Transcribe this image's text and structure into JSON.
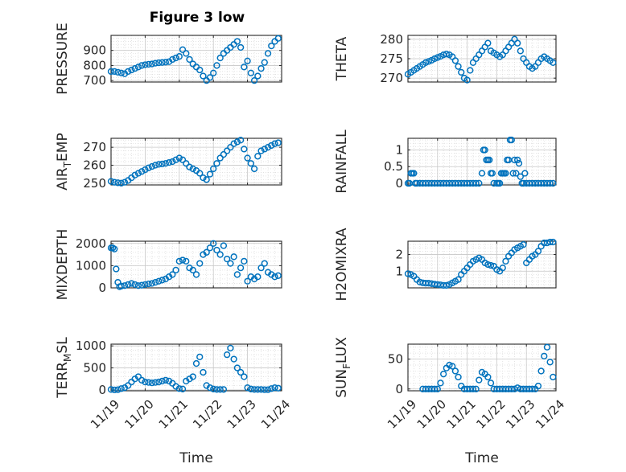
{
  "figure_title": "Figure 3 low",
  "colors": {
    "marker": "#0072BD",
    "axis": "#262626",
    "grid": "#d9d9d9",
    "background": "#ffffff"
  },
  "chart_data": [
    {
      "id": "pressure",
      "type": "scatter",
      "marker": "open-circle",
      "grid": true,
      "title": "Figure 3 low",
      "ylabel_main": "PRESSURE",
      "ylabel_sub": "",
      "xlabel": "",
      "xlim": [
        0,
        5
      ],
      "ylim": [
        690,
        1000
      ],
      "xticks": [
        0,
        1,
        2,
        3,
        4,
        5
      ],
      "xtick_labels": [],
      "yticks": [
        700,
        800,
        900
      ],
      "ytick_labels": [
        "700",
        "800",
        "900"
      ],
      "x": [
        0.0,
        0.1,
        0.2,
        0.3,
        0.4,
        0.5,
        0.6,
        0.7,
        0.8,
        0.9,
        1.0,
        1.1,
        1.2,
        1.3,
        1.4,
        1.5,
        1.6,
        1.7,
        1.8,
        1.9,
        2.0,
        2.1,
        2.2,
        2.3,
        2.4,
        2.5,
        2.6,
        2.7,
        2.8,
        2.9,
        3.0,
        3.1,
        3.2,
        3.3,
        3.4,
        3.5,
        3.6,
        3.7,
        3.8,
        3.9,
        4.0,
        4.1,
        4.2,
        4.3,
        4.4,
        4.5,
        4.6,
        4.7,
        4.8,
        4.9
      ],
      "y": [
        760,
        760,
        755,
        750,
        745,
        760,
        770,
        780,
        790,
        800,
        805,
        808,
        810,
        815,
        818,
        820,
        822,
        825,
        840,
        850,
        860,
        905,
        880,
        840,
        810,
        790,
        770,
        730,
        700,
        720,
        750,
        800,
        850,
        880,
        900,
        920,
        940,
        960,
        920,
        790,
        830,
        750,
        700,
        730,
        780,
        820,
        880,
        930,
        960,
        980
      ]
    },
    {
      "id": "theta",
      "type": "scatter",
      "marker": "open-circle",
      "grid": true,
      "title": "",
      "ylabel_main": "THETA",
      "ylabel_sub": "",
      "xlabel": "",
      "xlim": [
        0,
        5
      ],
      "ylim": [
        269,
        281
      ],
      "xticks": [
        0,
        1,
        2,
        3,
        4,
        5
      ],
      "xtick_labels": [],
      "yticks": [
        270,
        275,
        280
      ],
      "ytick_labels": [
        "270",
        "275",
        "280"
      ],
      "x": [
        0.0,
        0.1,
        0.2,
        0.3,
        0.4,
        0.5,
        0.6,
        0.7,
        0.8,
        0.9,
        1.0,
        1.1,
        1.2,
        1.3,
        1.4,
        1.5,
        1.6,
        1.7,
        1.8,
        1.9,
        2.0,
        2.1,
        2.2,
        2.3,
        2.4,
        2.5,
        2.6,
        2.7,
        2.8,
        2.9,
        3.0,
        3.1,
        3.2,
        3.3,
        3.4,
        3.5,
        3.6,
        3.7,
        3.8,
        3.9,
        4.0,
        4.1,
        4.2,
        4.3,
        4.4,
        4.5,
        4.6,
        4.7,
        4.8,
        4.9
      ],
      "y": [
        271,
        271.5,
        272,
        272.5,
        273,
        273.5,
        274,
        274.3,
        274.6,
        275,
        275.3,
        275.6,
        276,
        276.2,
        276,
        275.5,
        274.5,
        273,
        271.5,
        270,
        269.5,
        272,
        274,
        275,
        276,
        277,
        278,
        279,
        277,
        276.5,
        276,
        275.5,
        276,
        277,
        278,
        279,
        280,
        279,
        277,
        275,
        274,
        273,
        272.5,
        273,
        274,
        275,
        275.5,
        275,
        274.5,
        274
      ]
    },
    {
      "id": "air_temp",
      "type": "scatter",
      "marker": "open-circle",
      "grid": true,
      "title": "",
      "ylabel_main": "AIR",
      "ylabel_sub": "T",
      "ylabel_tail": "EMP",
      "xlabel": "",
      "xlim": [
        0,
        5
      ],
      "ylim": [
        249,
        275
      ],
      "xticks": [
        0,
        1,
        2,
        3,
        4,
        5
      ],
      "xtick_labels": [],
      "yticks": [
        250,
        260,
        270
      ],
      "ytick_labels": [
        "250",
        "260",
        "270"
      ],
      "x": [
        0.0,
        0.1,
        0.2,
        0.3,
        0.4,
        0.5,
        0.6,
        0.7,
        0.8,
        0.9,
        1.0,
        1.1,
        1.2,
        1.3,
        1.4,
        1.5,
        1.6,
        1.7,
        1.8,
        1.9,
        2.0,
        2.1,
        2.2,
        2.3,
        2.4,
        2.5,
        2.6,
        2.7,
        2.8,
        2.9,
        3.0,
        3.1,
        3.2,
        3.3,
        3.4,
        3.5,
        3.6,
        3.7,
        3.8,
        3.9,
        4.0,
        4.1,
        4.2,
        4.3,
        4.4,
        4.5,
        4.6,
        4.7,
        4.8,
        4.9
      ],
      "y": [
        251,
        250.5,
        250.2,
        250,
        250.5,
        251.5,
        253,
        254.5,
        255.5,
        256.5,
        257.5,
        258.5,
        259.3,
        260,
        260.5,
        260.7,
        261,
        261.5,
        262,
        263,
        264,
        263,
        261,
        259,
        258,
        257,
        255.5,
        253,
        252,
        255,
        258,
        261,
        264,
        266,
        268,
        270,
        272,
        273,
        274,
        269,
        264,
        261,
        258,
        265,
        268,
        269,
        270,
        271,
        272,
        272.5
      ]
    },
    {
      "id": "rainfall",
      "type": "scatter",
      "marker": "open-circle",
      "grid": true,
      "title": "",
      "ylabel_main": "RAINFALL",
      "ylabel_sub": "",
      "xlabel": "",
      "xlim": [
        0,
        5
      ],
      "ylim": [
        -0.05,
        1.35
      ],
      "xticks": [
        0,
        1,
        2,
        3,
        4,
        5
      ],
      "xtick_labels": [],
      "yticks": [
        0,
        0.5,
        1
      ],
      "ytick_labels": [
        "0",
        "0.5",
        "1"
      ],
      "x": [
        0.0,
        0.05,
        0.1,
        0.15,
        0.2,
        0.25,
        0.3,
        0.4,
        0.5,
        0.6,
        0.7,
        0.8,
        0.9,
        1.0,
        1.1,
        1.2,
        1.3,
        1.4,
        1.5,
        1.6,
        1.7,
        1.8,
        1.9,
        2.0,
        2.1,
        2.2,
        2.3,
        2.4,
        2.5,
        2.55,
        2.6,
        2.65,
        2.7,
        2.75,
        2.8,
        2.85,
        2.9,
        3.0,
        3.05,
        3.1,
        3.15,
        3.2,
        3.25,
        3.3,
        3.35,
        3.4,
        3.45,
        3.5,
        3.55,
        3.6,
        3.65,
        3.7,
        3.75,
        3.8,
        3.85,
        3.9,
        3.95,
        4.0,
        4.1,
        4.2,
        4.3,
        4.4,
        4.5,
        4.6,
        4.7,
        4.8,
        4.9
      ],
      "y": [
        0,
        0,
        0.3,
        0.3,
        0.3,
        0,
        0,
        0,
        0,
        0,
        0,
        0,
        0,
        0,
        0,
        0,
        0,
        0,
        0,
        0,
        0,
        0,
        0,
        0,
        0,
        0,
        0,
        0,
        0.3,
        1.0,
        1.0,
        0.7,
        0.7,
        0.7,
        0.3,
        0.3,
        0,
        0,
        0,
        0,
        0.3,
        0.3,
        0.3,
        0.3,
        0.7,
        0.7,
        1.3,
        1.3,
        0.3,
        0.7,
        0.3,
        0.7,
        0.6,
        0.2,
        0,
        0,
        0.3,
        0,
        0,
        0,
        0,
        0,
        0,
        0,
        0,
        0,
        0
      ]
    },
    {
      "id": "mixdepth",
      "type": "scatter",
      "marker": "open-circle",
      "grid": true,
      "title": "",
      "ylabel_main": "MIXDEPTH",
      "ylabel_sub": "",
      "xlabel": "",
      "xlim": [
        0,
        5
      ],
      "ylim": [
        0,
        2100
      ],
      "xticks": [
        0,
        1,
        2,
        3,
        4,
        5
      ],
      "xtick_labels": [],
      "yticks": [
        0,
        1000,
        2000
      ],
      "ytick_labels": [
        "0",
        "1000",
        "2000"
      ],
      "x": [
        0.0,
        0.05,
        0.1,
        0.15,
        0.2,
        0.25,
        0.3,
        0.4,
        0.5,
        0.6,
        0.7,
        0.8,
        0.9,
        1.0,
        1.1,
        1.2,
        1.3,
        1.4,
        1.5,
        1.6,
        1.7,
        1.8,
        1.9,
        2.0,
        2.1,
        2.2,
        2.3,
        2.4,
        2.5,
        2.6,
        2.7,
        2.8,
        2.9,
        3.0,
        3.1,
        3.2,
        3.3,
        3.4,
        3.5,
        3.6,
        3.7,
        3.8,
        3.9,
        4.0,
        4.1,
        4.2,
        4.3,
        4.4,
        4.5,
        4.6,
        4.7,
        4.8,
        4.9
      ],
      "y": [
        1800,
        1800,
        1750,
        850,
        250,
        50,
        80,
        100,
        150,
        200,
        150,
        100,
        120,
        150,
        180,
        200,
        250,
        300,
        350,
        400,
        500,
        600,
        800,
        1200,
        1250,
        1200,
        900,
        800,
        600,
        1100,
        1500,
        1600,
        1800,
        2000,
        1700,
        1500,
        1900,
        1300,
        1100,
        1400,
        600,
        900,
        1200,
        300,
        500,
        400,
        500,
        900,
        1100,
        700,
        600,
        500,
        550
      ]
    },
    {
      "id": "h2omixra",
      "type": "scatter",
      "marker": "open-circle",
      "grid": true,
      "title": "",
      "ylabel_main": "H2OMIXRA",
      "ylabel_sub": "",
      "xlabel": "",
      "xlim": [
        0,
        5
      ],
      "ylim": [
        0,
        2.8
      ],
      "xticks": [
        0,
        1,
        2,
        3,
        4,
        5
      ],
      "xtick_labels": [],
      "yticks": [
        1,
        2
      ],
      "ytick_labels": [
        "1",
        "2"
      ],
      "x": [
        0.0,
        0.1,
        0.2,
        0.3,
        0.4,
        0.5,
        0.6,
        0.7,
        0.8,
        0.9,
        1.0,
        1.1,
        1.2,
        1.3,
        1.4,
        1.5,
        1.6,
        1.7,
        1.8,
        1.9,
        2.0,
        2.1,
        2.2,
        2.3,
        2.4,
        2.5,
        2.6,
        2.7,
        2.8,
        2.9,
        3.0,
        3.1,
        3.2,
        3.3,
        3.4,
        3.5,
        3.6,
        3.7,
        3.8,
        3.9,
        4.0,
        4.1,
        4.2,
        4.3,
        4.4,
        4.5,
        4.6,
        4.7,
        4.8,
        4.9
      ],
      "y": [
        0.85,
        0.8,
        0.7,
        0.5,
        0.35,
        0.3,
        0.28,
        0.28,
        0.25,
        0.22,
        0.2,
        0.18,
        0.15,
        0.15,
        0.2,
        0.3,
        0.4,
        0.5,
        0.8,
        1.0,
        1.2,
        1.4,
        1.6,
        1.7,
        1.8,
        1.7,
        1.5,
        1.4,
        1.35,
        1.3,
        1.1,
        1.0,
        1.2,
        1.6,
        1.9,
        2.1,
        2.3,
        2.4,
        2.5,
        2.6,
        1.5,
        1.7,
        1.9,
        2.0,
        2.2,
        2.5,
        2.7,
        2.7,
        2.75,
        2.75
      ]
    },
    {
      "id": "terr_msl",
      "type": "scatter",
      "marker": "open-circle",
      "grid": true,
      "title": "",
      "ylabel_main": "TERR",
      "ylabel_sub": "M",
      "ylabel_tail": "SL",
      "xlabel": "Time",
      "xlim": [
        0,
        5
      ],
      "ylim": [
        -20,
        1040
      ],
      "xticks": [
        0,
        1,
        2,
        3,
        4,
        5
      ],
      "xtick_labels": [
        "11/19",
        "11/20",
        "11/21",
        "11/22",
        "11/23",
        "11/24"
      ],
      "yticks": [
        0,
        500,
        1000
      ],
      "ytick_labels": [
        "0",
        "500",
        "1000"
      ],
      "x": [
        0.0,
        0.1,
        0.2,
        0.3,
        0.4,
        0.5,
        0.6,
        0.7,
        0.8,
        0.9,
        1.0,
        1.1,
        1.2,
        1.3,
        1.4,
        1.5,
        1.6,
        1.7,
        1.8,
        1.9,
        2.0,
        2.1,
        2.2,
        2.3,
        2.4,
        2.5,
        2.6,
        2.7,
        2.8,
        2.9,
        3.0,
        3.1,
        3.2,
        3.3,
        3.4,
        3.5,
        3.6,
        3.7,
        3.8,
        3.9,
        4.0,
        4.1,
        4.2,
        4.3,
        4.4,
        4.5,
        4.6,
        4.7,
        4.8,
        4.9
      ],
      "y": [
        10,
        0,
        5,
        30,
        50,
        100,
        180,
        250,
        300,
        220,
        180,
        170,
        160,
        170,
        180,
        200,
        220,
        200,
        150,
        80,
        30,
        20,
        200,
        250,
        300,
        600,
        750,
        400,
        100,
        50,
        20,
        10,
        10,
        10,
        800,
        950,
        700,
        500,
        400,
        300,
        50,
        20,
        10,
        10,
        10,
        5,
        5,
        30,
        50,
        40
      ]
    },
    {
      "id": "sun_flux",
      "type": "scatter",
      "marker": "open-circle",
      "grid": true,
      "title": "",
      "ylabel_main": "SUN",
      "ylabel_sub": "F",
      "ylabel_tail": "LUX",
      "xlabel": "Time",
      "xlim": [
        0,
        5
      ],
      "ylim": [
        -3,
        75
      ],
      "xticks": [
        0,
        1,
        2,
        3,
        4,
        5
      ],
      "xtick_labels": [
        "11/19",
        "11/20",
        "11/21",
        "11/22",
        "11/23",
        "11/24"
      ],
      "yticks": [
        0,
        50
      ],
      "ytick_labels": [
        "0",
        "50"
      ],
      "x": [
        0.5,
        0.6,
        0.7,
        0.8,
        0.9,
        1.0,
        1.1,
        1.2,
        1.3,
        1.4,
        1.5,
        1.6,
        1.7,
        1.8,
        1.9,
        2.0,
        2.1,
        2.2,
        2.3,
        2.4,
        2.5,
        2.6,
        2.7,
        2.8,
        2.9,
        3.0,
        3.1,
        3.2,
        3.3,
        3.4,
        3.5,
        3.6,
        3.7,
        3.8,
        3.9,
        4.0,
        4.1,
        4.2,
        4.3,
        4.4,
        4.5,
        4.6,
        4.7,
        4.8,
        4.9
      ],
      "y": [
        0,
        0,
        0,
        0,
        0,
        0,
        10,
        25,
        35,
        40,
        38,
        30,
        20,
        5,
        0,
        0,
        0,
        0,
        0,
        15,
        28,
        25,
        20,
        10,
        0,
        0,
        0,
        0,
        0,
        0,
        0,
        0,
        2,
        0,
        0,
        0,
        0,
        0,
        0,
        5,
        30,
        55,
        70,
        45,
        20
      ]
    }
  ]
}
